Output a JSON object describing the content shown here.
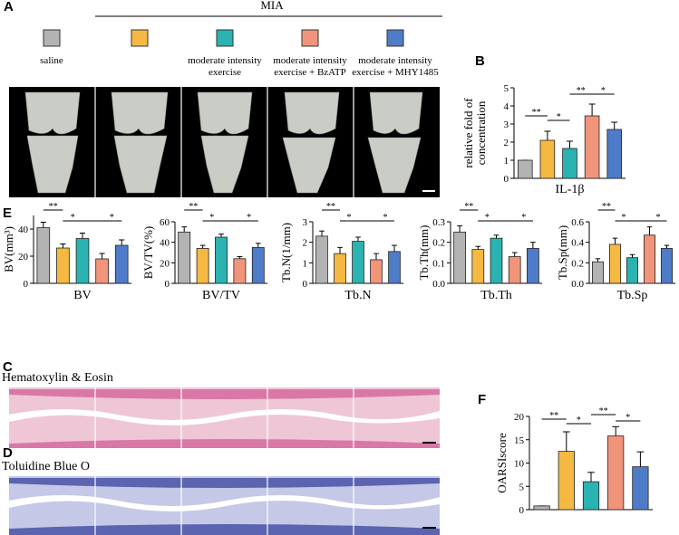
{
  "panels": [
    "A",
    "B",
    "C",
    "D",
    "E",
    "F"
  ],
  "legend": {
    "header": "MIA",
    "items": [
      {
        "color": "#b3b3b3",
        "lines": [
          "saline"
        ]
      },
      {
        "color": "#f5b942",
        "lines": []
      },
      {
        "color": "#2ab3b0",
        "lines": [
          "moderate intensity",
          "exercise"
        ]
      },
      {
        "color": "#f0957a",
        "lines": [
          "moderate intensity",
          "exercise + BzATP"
        ]
      },
      {
        "color": "#4f7cc9",
        "lines": [
          "moderate intensity",
          "exercise + MHY1485"
        ]
      }
    ]
  },
  "stain_c": "Hematoxylin & Eosin",
  "stain_d": "Toluidine Blue O",
  "chart_data": [
    {
      "type": "bar",
      "ylabel": [
        "relative fold of",
        "concentration"
      ],
      "xlabel": "IL-1β",
      "values": [
        1,
        2.1,
        1.65,
        3.45,
        2.7
      ],
      "errors": [
        0,
        0.5,
        0.4,
        0.65,
        0.4
      ],
      "colors": [
        "#b3b3b3",
        "#f5b942",
        "#2ab3b0",
        "#f0957a",
        "#4f7cc9"
      ],
      "ylim": [
        0,
        5
      ],
      "yticks": [
        0,
        1,
        2,
        3,
        4,
        5
      ],
      "annotations": [
        "**",
        "*",
        "**",
        "*"
      ]
    },
    {
      "type": "bar",
      "ylabel": [
        "BV(mm³)"
      ],
      "xlabel": "BV",
      "values": [
        41,
        26,
        33,
        18,
        28
      ],
      "errors": [
        4,
        3,
        4,
        4,
        4
      ],
      "colors": [
        "#b3b3b3",
        "#f5b942",
        "#2ab3b0",
        "#f0957a",
        "#4f7cc9"
      ],
      "ylim": [
        0,
        50
      ],
      "yticks": [
        0,
        20,
        40
      ],
      "annotations": [
        "**",
        "*",
        "*"
      ]
    },
    {
      "type": "bar",
      "ylabel": [
        "BV/TV(%)"
      ],
      "xlabel": "BV/TV",
      "values": [
        50,
        34,
        45,
        24,
        35
      ],
      "errors": [
        5,
        3,
        3,
        2,
        4
      ],
      "colors": [
        "#b3b3b3",
        "#f5b942",
        "#2ab3b0",
        "#f0957a",
        "#4f7cc9"
      ],
      "ylim": [
        0,
        60
      ],
      "yticks": [
        0,
        20,
        40,
        60
      ],
      "annotations": [
        "**",
        "*",
        "*"
      ]
    },
    {
      "type": "bar",
      "ylabel": [
        "Tb.N(1/mm)"
      ],
      "xlabel": "Tb.N",
      "values": [
        2.3,
        1.45,
        2.05,
        1.15,
        1.55
      ],
      "errors": [
        0.25,
        0.3,
        0.2,
        0.3,
        0.3
      ],
      "colors": [
        "#b3b3b3",
        "#f5b942",
        "#2ab3b0",
        "#f0957a",
        "#4f7cc9"
      ],
      "ylim": [
        0,
        3
      ],
      "yticks": [
        0,
        1,
        2,
        3
      ],
      "annotations": [
        "**",
        "*",
        "*"
      ]
    },
    {
      "type": "bar",
      "ylabel": [
        "Tb.Th(mm)"
      ],
      "xlabel": "Tb.Th",
      "values": [
        0.25,
        0.165,
        0.22,
        0.13,
        0.17
      ],
      "errors": [
        0.03,
        0.015,
        0.015,
        0.02,
        0.03
      ],
      "colors": [
        "#b3b3b3",
        "#f5b942",
        "#2ab3b0",
        "#f0957a",
        "#4f7cc9"
      ],
      "ylim": [
        0,
        0.3
      ],
      "yticks": [
        {
          "value": 0,
          "label": "0.0"
        },
        0.1,
        0.2,
        0.3
      ],
      "annotations": [
        "**",
        "*",
        "*"
      ]
    },
    {
      "type": "bar",
      "ylabel": [
        "Tb.Sp(mm)"
      ],
      "xlabel": "Tb.Sp",
      "values": [
        0.21,
        0.38,
        0.25,
        0.47,
        0.34
      ],
      "errors": [
        0.03,
        0.06,
        0.03,
        0.08,
        0.03
      ],
      "colors": [
        "#b3b3b3",
        "#f5b942",
        "#2ab3b0",
        "#f0957a",
        "#4f7cc9"
      ],
      "ylim": [
        0,
        0.6
      ],
      "yticks": [
        {
          "value": 0,
          "label": "0.0"
        },
        0.2,
        0.4,
        0.6
      ],
      "annotations": [
        "**",
        "*",
        "*"
      ]
    },
    {
      "type": "bar",
      "ylabel": [
        "OARSIscore"
      ],
      "xlabel": null,
      "values": [
        0.8,
        12.5,
        6,
        15.8,
        9.2
      ],
      "errors": [
        0,
        4.2,
        2,
        2,
        3.2
      ],
      "colors": [
        "#b3b3b3",
        "#f5b942",
        "#2ab3b0",
        "#f0957a",
        "#4f7cc9"
      ],
      "ylim": [
        0,
        20
      ],
      "yticks": [
        0,
        5,
        10,
        15,
        20
      ],
      "annotations": [
        "**",
        "*",
        "**",
        "*"
      ]
    }
  ]
}
